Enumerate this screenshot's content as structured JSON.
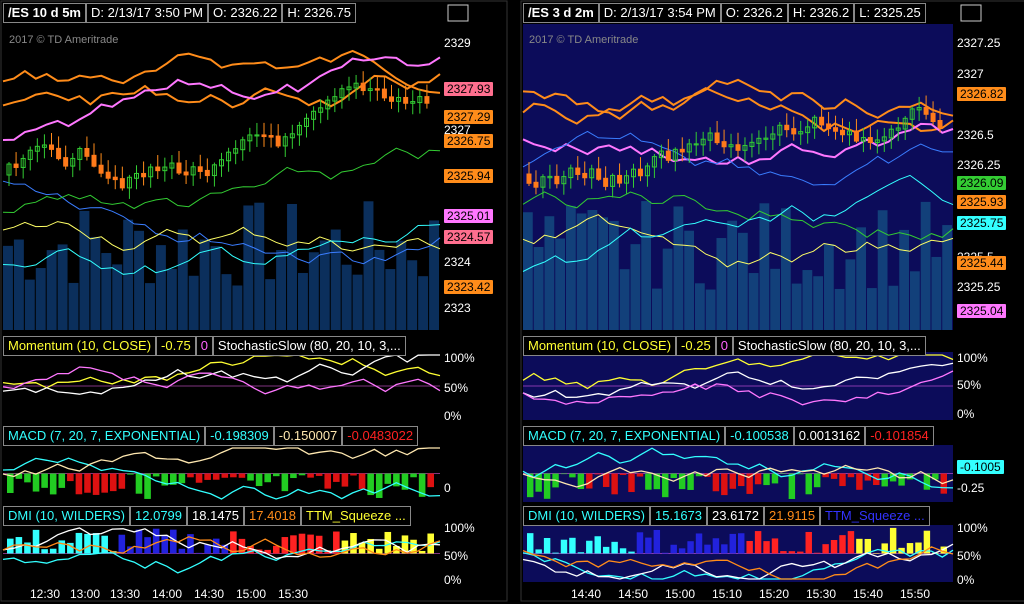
{
  "panels": [
    {
      "header": [
        {
          "text": "/ES 10 d 5m",
          "color": "#ffffff"
        },
        {
          "text": "D: 2/13/17 3:50 PM",
          "color": "#ffffff"
        },
        {
          "text": "O: 2326.22",
          "color": "#ffffff"
        },
        {
          "text": "H: 2326.75",
          "color": "#ffffff"
        }
      ],
      "watermark": "2017 © TD Ameritrade",
      "price_axis": [
        "2329",
        "2327",
        "2324",
        "2323"
      ],
      "price_tags": [
        {
          "label": "2327.93",
          "color": "#ff6f8f"
        },
        {
          "label": "2327.29",
          "color": "#ff8c1a"
        },
        {
          "label": "2326.75",
          "color": "#ff8c1a"
        },
        {
          "label": "2325.94",
          "color": "#ff8c1a"
        },
        {
          "label": "2325.01",
          "color": "#ff77ff"
        },
        {
          "label": "2324.57",
          "color": "#ff6f8f"
        },
        {
          "label": "2323.42",
          "color": "#ff8c1a"
        }
      ],
      "studies": [
        {
          "header": [
            {
              "text": "Momentum (10, CLOSE)",
              "color": "#ffff33"
            },
            {
              "text": "-0.75",
              "color": "#ffff33"
            },
            {
              "text": "0",
              "color": "#ff66ff"
            },
            {
              "text": "StochasticSlow (80, 20, 10, 3,...",
              "color": "#ffffff"
            }
          ],
          "axis": [
            "100%",
            "50%",
            "0%"
          ]
        },
        {
          "header": [
            {
              "text": "MACD (7, 20, 7, EXPONENTIAL)",
              "color": "#33ffff"
            },
            {
              "text": "-0.198309",
              "color": "#33ffff"
            },
            {
              "text": "-0.150007",
              "color": "#ffe8b0"
            },
            {
              "text": "-0.0483022",
              "color": "#ff2222"
            }
          ],
          "axis": [
            "0"
          ]
        },
        {
          "header": [
            {
              "text": "DMI (10, WILDERS)",
              "color": "#33ffff"
            },
            {
              "text": "12.0799",
              "color": "#33ffff"
            },
            {
              "text": "18.1475",
              "color": "#ffffff"
            },
            {
              "text": "17.4018",
              "color": "#ff8c1a"
            },
            {
              "text": "TTM_Squeeze ...",
              "color": "#ffff33"
            }
          ],
          "axis": [
            "100%",
            "50%",
            "0%"
          ]
        }
      ],
      "time_axis": [
        "12:30",
        "13:00",
        "13:30",
        "14:00",
        "14:30",
        "15:00",
        "15:30"
      ]
    },
    {
      "header": [
        {
          "text": "/ES 3 d 2m",
          "color": "#ffffff"
        },
        {
          "text": "D: 2/13/17 3:54 PM",
          "color": "#ffffff"
        },
        {
          "text": "O: 2326.2",
          "color": "#ffffff"
        },
        {
          "text": "H: 2326.2",
          "color": "#ffffff"
        },
        {
          "text": "L: 2325.25",
          "color": "#ffffff"
        }
      ],
      "watermark": "2017 © TD Ameritrade",
      "price_axis": [
        "2327.25",
        "2327",
        "2326.5",
        "2326.25",
        "2325.5",
        "2325.25"
      ],
      "price_tags": [
        {
          "label": "2326.82",
          "color": "#ff8c1a"
        },
        {
          "label": "2326.09",
          "color": "#33cc33"
        },
        {
          "label": "2325.93",
          "color": "#ff8c1a"
        },
        {
          "label": "2325.75",
          "color": "#33ffff"
        },
        {
          "label": "2325.44",
          "color": "#ff8c1a"
        },
        {
          "label": "2325.04",
          "color": "#ff77ff"
        }
      ],
      "studies": [
        {
          "header": [
            {
              "text": "Momentum (10, CLOSE)",
              "color": "#ffff33"
            },
            {
              "text": "-0.25",
              "color": "#ffff33"
            },
            {
              "text": "0",
              "color": "#ff66ff"
            },
            {
              "text": "StochasticSlow (80, 20, 10, 3,...",
              "color": "#ffffff"
            }
          ],
          "axis": [
            "100%",
            "50%",
            "0%"
          ]
        },
        {
          "header": [
            {
              "text": "MACD (7, 20, 7, EXPONENTIAL)",
              "color": "#33ffff"
            },
            {
              "text": "-0.100538",
              "color": "#33ffff"
            },
            {
              "text": "0.0013162",
              "color": "#ffffff"
            },
            {
              "text": "-0.101854",
              "color": "#ff2222"
            }
          ],
          "axis": [
            {
              "label": "-0.1005",
              "color": "#33ffff"
            },
            "-0.25"
          ]
        },
        {
          "header": [
            {
              "text": "DMI (10, WILDERS)",
              "color": "#33ffff"
            },
            {
              "text": "15.1673",
              "color": "#33ffff"
            },
            {
              "text": "23.6172",
              "color": "#ffffff"
            },
            {
              "text": "21.9115",
              "color": "#ff8c1a"
            },
            {
              "text": "TTM_Squeeze ...",
              "color": "#3333ff"
            }
          ],
          "axis": [
            "100%",
            "50%",
            "0%"
          ]
        }
      ],
      "time_axis": [
        "14:40",
        "14:50",
        "15:00",
        "15:10",
        "15:20",
        "15:30",
        "15:40",
        "15:50"
      ]
    }
  ]
}
